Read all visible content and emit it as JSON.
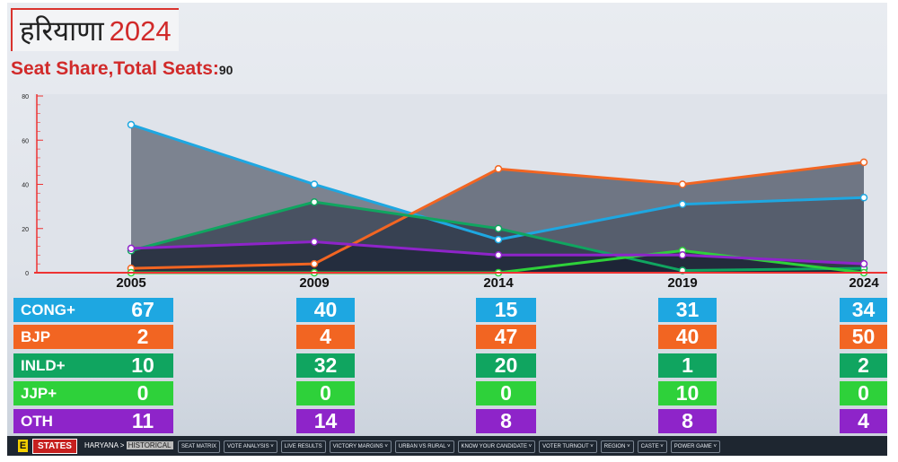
{
  "header": {
    "title_hi": "हरियाणा",
    "title_year": "2024",
    "subtitle": "Seat Share,Total Seats:",
    "total_seats": "90"
  },
  "chart_data": {
    "type": "area",
    "title": "Seat Share",
    "x": [
      "2005",
      "2009",
      "2014",
      "2019",
      "2024"
    ],
    "ylim": [
      0,
      80
    ],
    "yticks": [
      "0",
      "20",
      "40",
      "60",
      "80"
    ],
    "series": [
      {
        "name": "CONG+",
        "color": "#1ea7e1",
        "values": [
          67,
          40,
          15,
          31,
          34
        ]
      },
      {
        "name": "BJP",
        "color": "#f26522",
        "values": [
          2,
          4,
          47,
          40,
          50
        ]
      },
      {
        "name": "INLD+",
        "color": "#10a560",
        "values": [
          10,
          32,
          20,
          1,
          2
        ]
      },
      {
        "name": "JJP+",
        "color": "#2ed13a",
        "values": [
          0,
          0,
          0,
          10,
          0
        ]
      },
      {
        "name": "OTH",
        "color": "#8e24c9",
        "values": [
          11,
          14,
          8,
          8,
          4
        ]
      }
    ]
  },
  "footer": {
    "breadcrumb": "HARYANA >",
    "breadcrumb_active": "HISTORICAL",
    "logo": "E",
    "states": "STATES",
    "nav": [
      "SEAT MATRIX",
      "VOTE ANALYSIS",
      "LIVE RESULTS",
      "VICTORY MARGINS",
      "URBAN VS RURAL",
      "KNOW YOUR CANDIDATE",
      "VOTER TURNOUT",
      "REGION",
      "CASTE",
      "POWER GAME"
    ]
  }
}
